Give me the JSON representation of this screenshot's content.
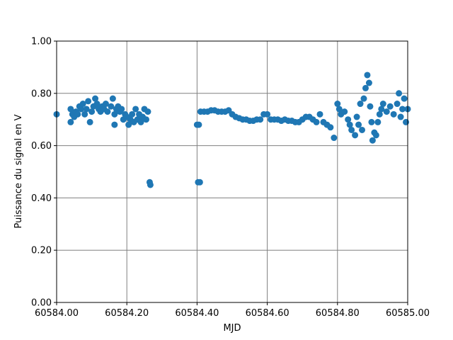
{
  "chart_data": {
    "type": "scatter",
    "x_label": "MJD",
    "y_label": "Puissance du signal en V",
    "color": "#1f77b4",
    "grid": true,
    "grid_color": "#808080",
    "xlim": [
      60584.0,
      60585.0
    ],
    "ylim": [
      0,
      1
    ],
    "xticks": [
      {
        "value": 60584.0,
        "label": "60584.00"
      },
      {
        "value": 60584.2,
        "label": "60584.20"
      },
      {
        "value": 60584.4,
        "label": "60584.40"
      },
      {
        "value": 60584.6,
        "label": "60584.60"
      },
      {
        "value": 60584.8,
        "label": "60584.80"
      },
      {
        "value": 60585.0,
        "label": "60585.00"
      }
    ],
    "yticks": [
      {
        "value": 0,
        "label": "0.00"
      },
      {
        "value": 0.2,
        "label": "0.20"
      },
      {
        "value": 0.4,
        "label": "0.40"
      },
      {
        "value": 0.6,
        "label": "0.60"
      },
      {
        "value": 0.8,
        "label": "0.80"
      },
      {
        "value": 1,
        "label": "1.00"
      }
    ],
    "x": [
      60584.0,
      60584.04,
      60584.04,
      60584.045,
      60584.05,
      60584.055,
      60584.06,
      60584.065,
      60584.07,
      60584.075,
      60584.08,
      60584.085,
      60584.09,
      60584.095,
      60584.1,
      60584.105,
      60584.11,
      60584.115,
      60584.12,
      60584.125,
      60584.13,
      60584.135,
      60584.14,
      60584.145,
      60584.155,
      60584.16,
      60584.165,
      60584.165,
      60584.17,
      60584.175,
      60584.18,
      60584.185,
      60584.19,
      60584.195,
      60584.2,
      60584.205,
      60584.21,
      60584.215,
      60584.22,
      60584.225,
      60584.23,
      60584.235,
      60584.24,
      60584.245,
      60584.25,
      60584.255,
      60584.26,
      60584.265,
      60584.267,
      60584.4,
      60584.403,
      60584.405,
      60584.408,
      60584.41,
      60584.42,
      60584.43,
      60584.44,
      60584.45,
      60584.46,
      60584.47,
      60584.48,
      60584.49,
      60584.5,
      60584.51,
      60584.52,
      60584.53,
      60584.54,
      60584.55,
      60584.56,
      60584.57,
      60584.58,
      60584.59,
      60584.6,
      60584.61,
      60584.62,
      60584.63,
      60584.64,
      60584.65,
      60584.66,
      60584.67,
      60584.68,
      60584.69,
      60584.7,
      60584.71,
      60584.72,
      60584.73,
      60584.74,
      60584.75,
      60584.76,
      60584.77,
      60584.78,
      60584.79,
      60584.8,
      60584.805,
      60584.81,
      60584.82,
      60584.83,
      60584.835,
      60584.84,
      60584.85,
      60584.855,
      60584.86,
      60584.865,
      60584.87,
      60584.875,
      60584.88,
      60584.885,
      60584.89,
      60584.893,
      60584.897,
      60584.9,
      60584.905,
      60584.91,
      60584.915,
      60584.92,
      60584.925,
      60584.93,
      60584.94,
      60584.95,
      60584.96,
      60584.97,
      60584.975,
      60584.98,
      60584.985,
      60584.99,
      60584.995,
      60585.0
    ],
    "values": [
      0.72,
      0.74,
      0.69,
      0.72,
      0.71,
      0.73,
      0.72,
      0.75,
      0.74,
      0.76,
      0.72,
      0.74,
      0.77,
      0.69,
      0.73,
      0.75,
      0.78,
      0.76,
      0.74,
      0.73,
      0.75,
      0.74,
      0.76,
      0.73,
      0.75,
      0.78,
      0.72,
      0.68,
      0.74,
      0.75,
      0.73,
      0.74,
      0.7,
      0.72,
      0.71,
      0.68,
      0.7,
      0.72,
      0.69,
      0.74,
      0.7,
      0.72,
      0.69,
      0.71,
      0.74,
      0.7,
      0.73,
      0.46,
      0.45,
      0.68,
      0.46,
      0.68,
      0.46,
      0.73,
      0.73,
      0.73,
      0.735,
      0.735,
      0.73,
      0.73,
      0.73,
      0.735,
      0.72,
      0.71,
      0.705,
      0.7,
      0.7,
      0.695,
      0.695,
      0.7,
      0.7,
      0.72,
      0.72,
      0.7,
      0.7,
      0.7,
      0.695,
      0.7,
      0.695,
      0.695,
      0.69,
      0.69,
      0.7,
      0.71,
      0.71,
      0.7,
      0.69,
      0.72,
      0.69,
      0.68,
      0.67,
      0.63,
      0.76,
      0.74,
      0.72,
      0.73,
      0.7,
      0.68,
      0.66,
      0.64,
      0.71,
      0.68,
      0.76,
      0.66,
      0.78,
      0.82,
      0.87,
      0.84,
      0.75,
      0.69,
      0.62,
      0.65,
      0.64,
      0.69,
      0.72,
      0.74,
      0.76,
      0.73,
      0.75,
      0.72,
      0.76,
      0.8,
      0.71,
      0.74,
      0.78,
      0.69,
      0.74
    ]
  }
}
